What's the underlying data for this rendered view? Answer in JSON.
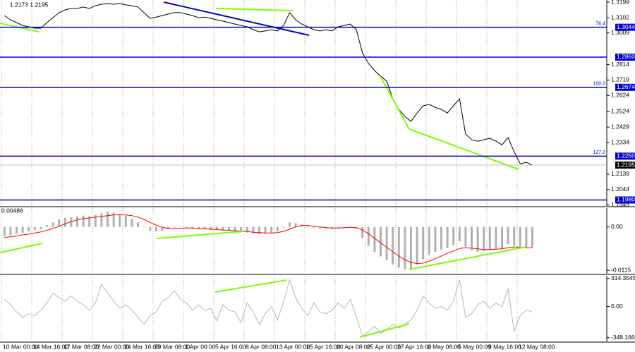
{
  "chart_data": [
    {
      "type": "line",
      "title": "1.2173 1.2195",
      "color": "#000000",
      "categories": [
        "10 Mar 00:00",
        null,
        null,
        null,
        null,
        "14 Mar 16:00",
        null,
        null,
        null,
        null,
        "17 Mar 08:00",
        null,
        null,
        null,
        null,
        "22 Mar 00:00",
        null,
        null,
        null,
        null,
        "24 Mar 16:00",
        null,
        null,
        null,
        null,
        "29 Mar 08:00",
        null,
        null,
        null,
        null,
        "1 Apr 00:00",
        null,
        null,
        null,
        null,
        "5 Apr 16:00",
        null,
        null,
        null,
        null,
        "8 Apr 08:00",
        null,
        null,
        null,
        null,
        "13 Apr 00:00",
        null,
        null,
        null,
        null,
        "15 Apr 16:00",
        null,
        null,
        null,
        null,
        "20 Apr 08:00",
        null,
        null,
        null,
        null,
        "25 Apr 00:00",
        null,
        null,
        null,
        null,
        "27 Apr 16:00",
        null,
        null,
        null,
        null,
        "2 May 08:00",
        null,
        null,
        null,
        null,
        "5 May 00:00",
        null,
        null,
        null,
        null,
        "9 May 16:00",
        null,
        null,
        null,
        null,
        "12 May 08:00",
        null,
        null
      ],
      "values": [
        1.3116,
        1.309,
        1.3073,
        1.3055,
        1.3047,
        1.3038,
        1.3038,
        1.3073,
        1.3103,
        1.3134,
        1.3151,
        1.316,
        1.316,
        1.3169,
        1.316,
        1.3177,
        1.3186,
        1.319,
        1.3186,
        1.319,
        1.3182,
        1.3177,
        1.3169,
        1.3134,
        1.3099,
        1.3107,
        1.3116,
        1.3125,
        1.3134,
        1.3134,
        1.3125,
        1.3116,
        1.3103,
        1.3107,
        1.3099,
        1.309,
        1.3082,
        1.3073,
        1.3064,
        1.3055,
        1.3047,
        1.3029,
        1.3016,
        1.3021,
        1.3029,
        1.3021,
        1.3055,
        1.3134,
        1.309,
        1.3064,
        1.3047,
        1.3029,
        1.3021,
        1.3029,
        1.3021,
        1.3047,
        1.3055,
        1.3064,
        1.3029,
        1.2886,
        1.2821,
        1.2777,
        1.2742,
        1.2712,
        1.2603,
        1.2538,
        1.2494,
        1.2464,
        1.2516,
        1.256,
        1.2569,
        1.2551,
        1.2538,
        1.2516,
        1.256,
        1.2603,
        1.2386,
        1.2351,
        1.2342,
        1.2351,
        1.236,
        1.2342,
        1.232,
        1.2364,
        1.2277,
        1.2203,
        1.2212,
        1.2195
      ],
      "ylim": [
        1.1943,
        1.3212
      ],
      "yticks": [
        1.3199,
        1.3102,
        1.3009,
        1.2814,
        1.2719,
        1.2624,
        1.2524,
        1.2429,
        1.2334,
        1.2139,
        1.2044,
        1.1949
      ],
      "levels": [
        {
          "value": 1.3044,
          "fib": "76.4"
        },
        {
          "value": 1.286
        },
        {
          "value": 1.2674,
          "fib": "100.0"
        },
        {
          "value": 1.225,
          "fib": "127.2"
        },
        {
          "value": 1.198
        }
      ],
      "level_labels": [
        "1.3044",
        "1.2860",
        "1.2674",
        "1.2250",
        "1.1980"
      ],
      "level_color": "#0000cc",
      "current": 1.2195,
      "grid": true
    },
    {
      "type": "combo",
      "title": "0.00486",
      "ylim": [
        -0.0124,
        0.005
      ],
      "yticks": [
        {
          "value": 0,
          "label": "0.00"
        },
        -0.0115
      ],
      "series": [
        {
          "type": "bar",
          "color": "#b0b0b0",
          "values": [
            -0.0025,
            -0.0022,
            -0.0018,
            -0.0015,
            -0.0012,
            -0.0008,
            -0.0006,
            0.0005,
            0.0012,
            0.002,
            0.0024,
            0.0026,
            0.0028,
            0.003,
            0.0028,
            0.0032,
            0.0036,
            0.004,
            0.0038,
            0.0034,
            0.003,
            0.0022,
            0.0012,
            0.0002,
            -0.001,
            -0.0012,
            -0.001,
            -0.0006,
            -0.0002,
            0,
            -0.0002,
            -0.0004,
            -0.0006,
            -0.0006,
            -0.0008,
            -0.0008,
            -0.001,
            -0.001,
            -0.0012,
            -0.0014,
            -0.0015,
            -0.0018,
            -0.002,
            -0.0018,
            -0.0016,
            -0.0012,
            -0.0002,
            0.0012,
            0.001,
            0.0006,
            0.0002,
            -0.0002,
            -0.0004,
            -0.0004,
            -0.0005,
            -0.0002,
            0,
            0.0001,
            -0.0004,
            -0.003,
            -0.005,
            -0.0066,
            -0.0078,
            -0.0088,
            -0.01,
            -0.0108,
            -0.0112,
            -0.011,
            -0.01,
            -0.0086,
            -0.0074,
            -0.0066,
            -0.006,
            -0.0056,
            -0.0048,
            -0.0038,
            -0.0052,
            -0.0062,
            -0.0066,
            -0.0064,
            -0.006,
            -0.0058,
            -0.0058,
            -0.0046,
            -0.005,
            -0.0058,
            -0.0054,
            -0.0054
          ]
        },
        {
          "type": "line",
          "color": "#ff0000",
          "values": [
            -0.0028,
            -0.0026,
            -0.0024,
            -0.0021,
            -0.0019,
            -0.0016,
            -0.0013,
            -0.0009,
            -0.0004,
            0.0002,
            0.0008,
            0.0014,
            0.0019,
            0.0022,
            0.0024,
            0.0026,
            0.0028,
            0.003,
            0.0032,
            0.0032,
            0.0032,
            0.003,
            0.0026,
            0.002,
            0.0012,
            0.0005,
            -0.0001,
            -0.0004,
            -0.0005,
            -0.0004,
            -0.0003,
            -0.0003,
            -0.0004,
            -0.0005,
            -0.0006,
            -0.0007,
            -0.0008,
            -0.0009,
            -0.001,
            -0.0011,
            -0.0012,
            -0.0014,
            -0.0015,
            -0.0016,
            -0.0016,
            -0.0015,
            -0.0012,
            -0.0006,
            0,
            0.0004,
            0.0004,
            0.0002,
            0,
            -0.0002,
            -0.0003,
            -0.0003,
            -0.0002,
            -0.0001,
            -0.0002,
            -0.0008,
            -0.0018,
            -0.003,
            -0.0042,
            -0.0054,
            -0.0066,
            -0.0077,
            -0.0087,
            -0.0094,
            -0.0097,
            -0.0096,
            -0.0091,
            -0.0084,
            -0.0077,
            -0.007,
            -0.0064,
            -0.0057,
            -0.0055,
            -0.0056,
            -0.0058,
            -0.006,
            -0.006,
            -0.0059,
            -0.0058,
            -0.0055,
            -0.0053,
            -0.0054,
            -0.0055,
            -0.0055
          ]
        }
      ]
    },
    {
      "type": "combo",
      "ylim": [
        -390,
        344
      ],
      "yticks": [
        314.3545,
        {
          "value": 0,
          "label": "0.00"
        },
        {
          "value": -348.166,
          "label": "-348.1660"
        }
      ],
      "series": [
        {
          "type": "line",
          "color": "#b4b4b4",
          "values": [
            80,
            20,
            -60,
            -120,
            -80,
            -100,
            -40,
            40,
            150,
            100,
            60,
            120,
            60,
            20,
            -40,
            40,
            250,
            150,
            60,
            -20,
            20,
            -40,
            -120,
            -200,
            -100,
            -60,
            60,
            100,
            180,
            80,
            40,
            -40,
            20,
            -40,
            -20,
            -160,
            20,
            -40,
            -60,
            -180,
            40,
            -60,
            -200,
            -80,
            0,
            -150,
            50,
            300,
            100,
            -20,
            -100,
            40,
            -60,
            -80,
            -40,
            40,
            -20,
            80,
            -120,
            -330,
            -280,
            -220,
            -300,
            -260,
            -200,
            -240,
            -200,
            -150,
            -40,
            120,
            40,
            -20,
            0,
            -40,
            60,
            300,
            -120,
            -80,
            20,
            60,
            -20,
            40,
            0,
            200,
            -280,
            -100,
            -40,
            -60
          ]
        }
      ]
    }
  ]
}
